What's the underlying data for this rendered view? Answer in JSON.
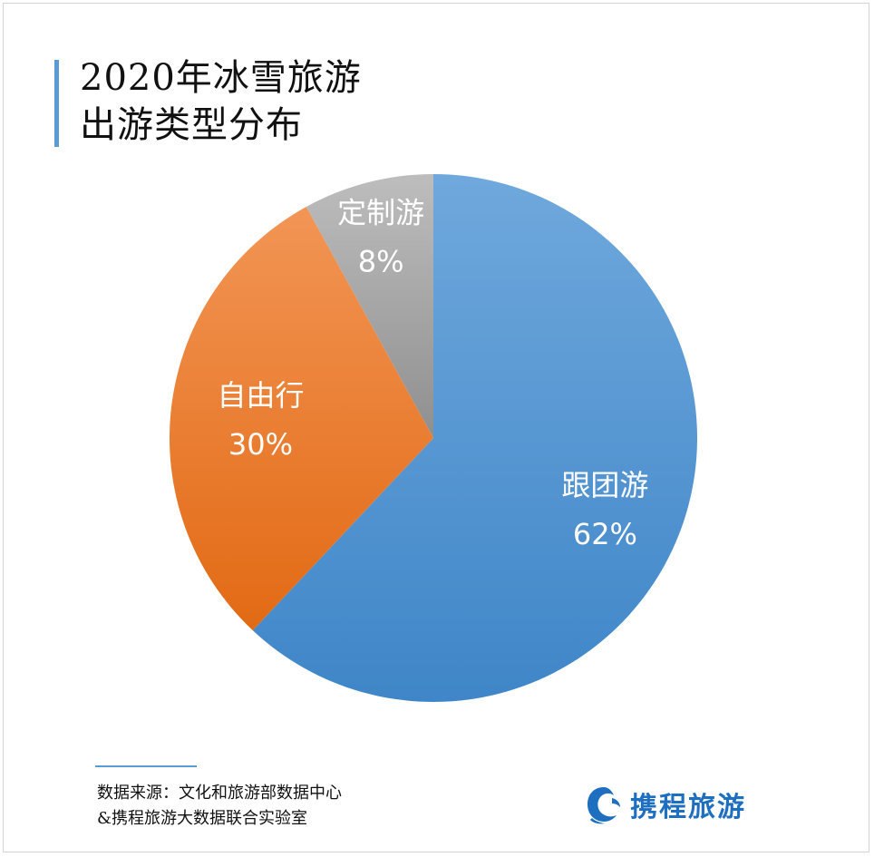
{
  "title": {
    "line1": "2020年冰雪旅游",
    "line2": "出游类型分布"
  },
  "chart_data": {
    "type": "pie",
    "title": "2020年冰雪旅游出游类型分布",
    "categories": [
      "跟团游",
      "自由行",
      "定制游"
    ],
    "values": [
      62,
      30,
      8
    ],
    "value_labels": [
      "62%",
      "30%",
      "8%"
    ],
    "colors": [
      "#5b9bd5",
      "#ed7d31",
      "#a5a5a5"
    ],
    "start": "12 o'clock",
    "direction": "clockwise",
    "legend": "none (labels inside slices)"
  },
  "source": {
    "line1": "数据来源：文化和旅游部数据中心",
    "line2": "&携程旅游大数据联合实验室"
  },
  "logo": {
    "text": "携程旅游",
    "icon": "dolphin-icon",
    "color": "#1f6fc0"
  },
  "colors": {
    "accent": "#5b9bd5"
  }
}
